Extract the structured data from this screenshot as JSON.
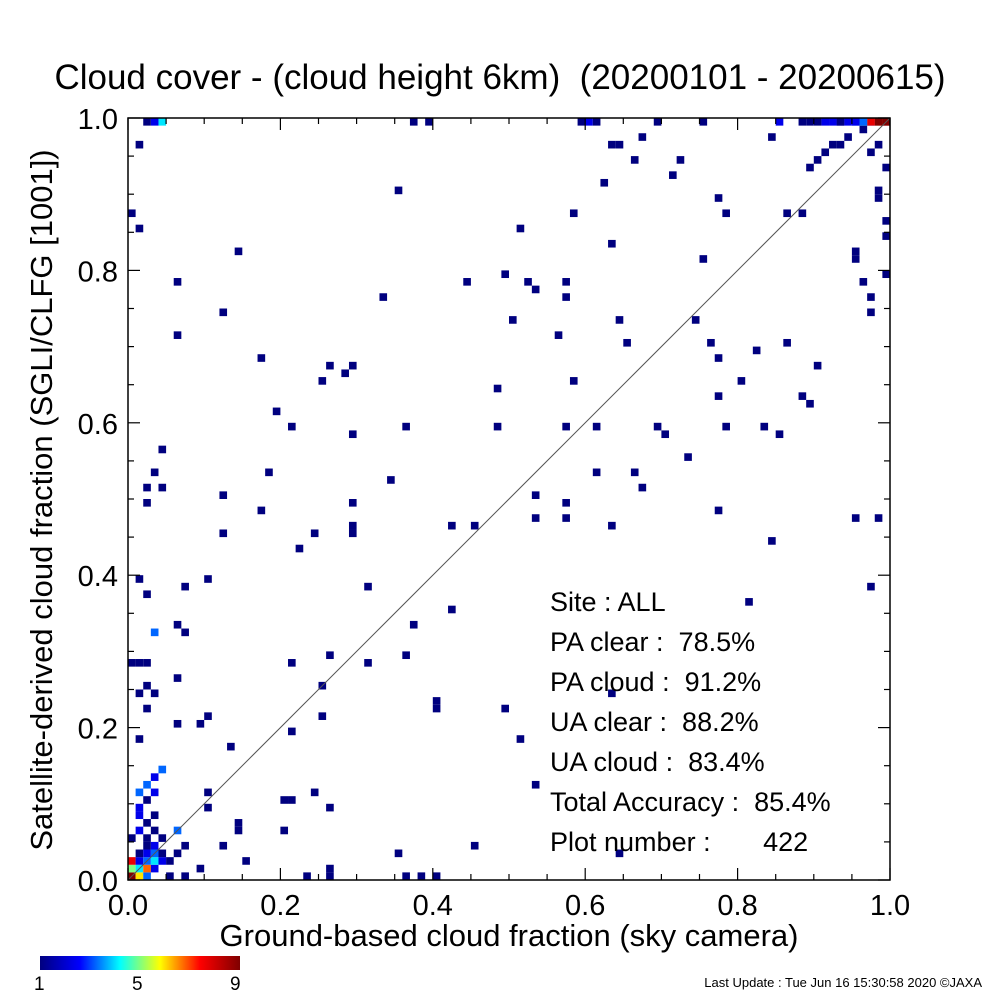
{
  "chart_data": {
    "type": "heatmap",
    "title": "Cloud cover - (cloud height 6km)  (20200101 - 20200615)",
    "xlabel": "Ground-based cloud fraction (sky camera)",
    "ylabel": "Satellite-derived cloud fraction (SGLI/CLFG [1001])",
    "xlim": [
      0.0,
      1.0
    ],
    "ylim": [
      0.0,
      1.0
    ],
    "x_ticks": [
      "0.0",
      "0.2",
      "0.4",
      "0.6",
      "0.8",
      "1.0"
    ],
    "y_ticks": [
      "0.0",
      "0.2",
      "0.4",
      "0.6",
      "0.8",
      "1.0"
    ],
    "bin_size": 0.01,
    "diagonal_reference_line": true,
    "colorbar": {
      "min": 1,
      "max": 9,
      "ticks": [
        "1",
        "5",
        "9"
      ]
    },
    "cells": [
      [
        0.0,
        0.0,
        9
      ],
      [
        0.01,
        0.0,
        6
      ],
      [
        0.02,
        0.0,
        3
      ],
      [
        0.0,
        0.01,
        5
      ],
      [
        0.01,
        0.01,
        4
      ],
      [
        0.02,
        0.01,
        7
      ],
      [
        0.03,
        0.01,
        2
      ],
      [
        0.0,
        0.02,
        8
      ],
      [
        0.01,
        0.02,
        2
      ],
      [
        0.02,
        0.02,
        3
      ],
      [
        0.03,
        0.02,
        4
      ],
      [
        0.04,
        0.02,
        2
      ],
      [
        0.01,
        0.03,
        1
      ],
      [
        0.02,
        0.03,
        2
      ],
      [
        0.03,
        0.03,
        3
      ],
      [
        0.04,
        0.03,
        1
      ],
      [
        0.02,
        0.04,
        1
      ],
      [
        0.03,
        0.04,
        2
      ],
      [
        0.0,
        0.05,
        1
      ],
      [
        0.02,
        0.05,
        1
      ],
      [
        0.04,
        0.05,
        1
      ],
      [
        0.01,
        0.06,
        2
      ],
      [
        0.03,
        0.06,
        1
      ],
      [
        0.06,
        0.06,
        3
      ],
      [
        0.02,
        0.07,
        1
      ],
      [
        0.01,
        0.08,
        2
      ],
      [
        0.03,
        0.08,
        1
      ],
      [
        0.01,
        0.09,
        2
      ],
      [
        0.02,
        0.1,
        1
      ],
      [
        0.01,
        0.11,
        3
      ],
      [
        0.03,
        0.11,
        2
      ],
      [
        0.02,
        0.12,
        3
      ],
      [
        0.03,
        0.13,
        2
      ],
      [
        0.04,
        0.14,
        3
      ],
      [
        0.01,
        0.18,
        1
      ],
      [
        0.02,
        0.22,
        1
      ],
      [
        0.01,
        0.24,
        1
      ],
      [
        0.03,
        0.24,
        1
      ],
      [
        0.02,
        0.25,
        1
      ],
      [
        0.0,
        0.28,
        1
      ],
      [
        0.01,
        0.28,
        1
      ],
      [
        0.02,
        0.28,
        1
      ],
      [
        0.03,
        0.32,
        3
      ],
      [
        0.01,
        0.39,
        1
      ],
      [
        0.02,
        0.37,
        1
      ],
      [
        0.05,
        0.02,
        1
      ],
      [
        0.07,
        0.0,
        1
      ],
      [
        0.05,
        0.0,
        1
      ],
      [
        0.06,
        0.03,
        1
      ],
      [
        0.07,
        0.04,
        1
      ],
      [
        0.06,
        0.2,
        1
      ],
      [
        0.06,
        0.26,
        1
      ],
      [
        0.06,
        0.33,
        1
      ],
      [
        0.07,
        0.32,
        1
      ],
      [
        0.07,
        0.38,
        1
      ],
      [
        0.1,
        0.39,
        1
      ],
      [
        0.09,
        0.2,
        1
      ],
      [
        0.1,
        0.21,
        1
      ],
      [
        0.1,
        0.09,
        1
      ],
      [
        0.1,
        0.11,
        1
      ],
      [
        0.09,
        0.01,
        1
      ],
      [
        0.12,
        0.04,
        1
      ],
      [
        0.13,
        0.17,
        1
      ],
      [
        0.12,
        0.45,
        1
      ],
      [
        0.12,
        0.5,
        1
      ],
      [
        0.14,
        0.82,
        1
      ],
      [
        0.12,
        0.74,
        1
      ],
      [
        0.06,
        0.71,
        1
      ],
      [
        0.06,
        0.78,
        1
      ],
      [
        0.02,
        0.49,
        1
      ],
      [
        0.02,
        0.51,
        1
      ],
      [
        0.03,
        0.53,
        1
      ],
      [
        0.04,
        0.56,
        1
      ],
      [
        0.04,
        0.51,
        1
      ],
      [
        0.0,
        0.87,
        1
      ],
      [
        0.01,
        0.85,
        1
      ],
      [
        0.01,
        0.96,
        1
      ],
      [
        0.03,
        1.0,
        2
      ],
      [
        0.04,
        1.0,
        4
      ],
      [
        0.02,
        1.0,
        1
      ],
      [
        0.15,
        0.02,
        1
      ],
      [
        0.14,
        0.06,
        1
      ],
      [
        0.14,
        0.07,
        1
      ],
      [
        0.18,
        0.53,
        1
      ],
      [
        0.17,
        0.48,
        1
      ],
      [
        0.17,
        0.68,
        1
      ],
      [
        0.19,
        0.61,
        1
      ],
      [
        0.21,
        0.59,
        1
      ],
      [
        0.2,
        0.1,
        1
      ],
      [
        0.21,
        0.1,
        1
      ],
      [
        0.2,
        0.06,
        1
      ],
      [
        0.21,
        0.19,
        1
      ],
      [
        0.21,
        0.28,
        1
      ],
      [
        0.22,
        0.43,
        1
      ],
      [
        0.24,
        0.45,
        1
      ],
      [
        0.26,
        0.29,
        1
      ],
      [
        0.25,
        0.25,
        1
      ],
      [
        0.25,
        0.21,
        1
      ],
      [
        0.25,
        0.65,
        1
      ],
      [
        0.26,
        0.67,
        1
      ],
      [
        0.28,
        0.66,
        1
      ],
      [
        0.29,
        0.67,
        1
      ],
      [
        0.29,
        0.58,
        1
      ],
      [
        0.29,
        0.49,
        1
      ],
      [
        0.29,
        0.46,
        1
      ],
      [
        0.29,
        0.45,
        1
      ],
      [
        0.24,
        0.11,
        1
      ],
      [
        0.26,
        0.09,
        1
      ],
      [
        0.26,
        0.01,
        1
      ],
      [
        0.26,
        0.0,
        1
      ],
      [
        0.23,
        0.0,
        1
      ],
      [
        0.31,
        0.38,
        1
      ],
      [
        0.31,
        0.28,
        1
      ],
      [
        0.33,
        0.76,
        1
      ],
      [
        0.34,
        0.52,
        1
      ],
      [
        0.35,
        0.9,
        1
      ],
      [
        0.36,
        0.59,
        1
      ],
      [
        0.36,
        0.29,
        1
      ],
      [
        0.37,
        0.33,
        1
      ],
      [
        0.35,
        0.03,
        1
      ],
      [
        0.36,
        0.0,
        1
      ],
      [
        0.38,
        0.0,
        1
      ],
      [
        0.4,
        0.0,
        1
      ],
      [
        0.37,
        1.0,
        1
      ],
      [
        0.39,
        0.99,
        1
      ],
      [
        0.4,
        0.23,
        1
      ],
      [
        0.4,
        0.22,
        1
      ],
      [
        0.42,
        0.35,
        1
      ],
      [
        0.42,
        0.46,
        1
      ],
      [
        0.45,
        0.46,
        1
      ],
      [
        0.45,
        0.04,
        1
      ],
      [
        0.44,
        0.78,
        1
      ],
      [
        0.48,
        0.64,
        1
      ],
      [
        0.48,
        0.59,
        1
      ],
      [
        0.49,
        0.79,
        1
      ],
      [
        0.49,
        0.22,
        1
      ],
      [
        0.5,
        0.73,
        1
      ],
      [
        0.51,
        0.85,
        1
      ],
      [
        0.51,
        0.18,
        1
      ],
      [
        0.52,
        0.78,
        1
      ],
      [
        0.53,
        0.77,
        1
      ],
      [
        0.53,
        0.5,
        1
      ],
      [
        0.53,
        0.47,
        1
      ],
      [
        0.56,
        0.71,
        1
      ],
      [
        0.57,
        0.78,
        1
      ],
      [
        0.57,
        0.76,
        1
      ],
      [
        0.57,
        0.59,
        1
      ],
      [
        0.57,
        0.49,
        1
      ],
      [
        0.57,
        0.47,
        1
      ],
      [
        0.58,
        0.87,
        1
      ],
      [
        0.58,
        0.65,
        1
      ],
      [
        0.53,
        0.12,
        1
      ],
      [
        0.59,
        0.99,
        1
      ],
      [
        0.6,
        1.0,
        2
      ],
      [
        0.61,
        0.99,
        1
      ],
      [
        0.62,
        0.91,
        1
      ],
      [
        0.63,
        0.96,
        1
      ],
      [
        0.64,
        0.96,
        1
      ],
      [
        0.63,
        0.83,
        1
      ],
      [
        0.64,
        0.73,
        1
      ],
      [
        0.65,
        0.7,
        1
      ],
      [
        0.61,
        0.59,
        1
      ],
      [
        0.61,
        0.53,
        1
      ],
      [
        0.63,
        0.46,
        1
      ],
      [
        0.66,
        0.53,
        1
      ],
      [
        0.67,
        0.51,
        1
      ],
      [
        0.69,
        0.59,
        1
      ],
      [
        0.7,
        0.58,
        1
      ],
      [
        0.73,
        0.55,
        1
      ],
      [
        0.74,
        0.73,
        1
      ],
      [
        0.75,
        0.81,
        1
      ],
      [
        0.76,
        0.7,
        1
      ],
      [
        0.77,
        0.68,
        1
      ],
      [
        0.77,
        0.63,
        1
      ],
      [
        0.78,
        0.59,
        1
      ],
      [
        0.77,
        0.48,
        1
      ],
      [
        0.66,
        0.94,
        1
      ],
      [
        0.67,
        0.97,
        1
      ],
      [
        0.69,
        0.99,
        1
      ],
      [
        0.71,
        0.92,
        1
      ],
      [
        0.72,
        0.94,
        1
      ],
      [
        0.75,
        1.0,
        1
      ],
      [
        0.77,
        0.89,
        1
      ],
      [
        0.78,
        0.87,
        1
      ],
      [
        0.8,
        0.65,
        1
      ],
      [
        0.81,
        0.36,
        1
      ],
      [
        0.82,
        0.69,
        1
      ],
      [
        0.83,
        0.59,
        1
      ],
      [
        0.84,
        0.44,
        1
      ],
      [
        0.85,
        0.58,
        1
      ],
      [
        0.86,
        0.7,
        1
      ],
      [
        0.88,
        0.63,
        1
      ],
      [
        0.89,
        0.62,
        1
      ],
      [
        0.9,
        0.67,
        1
      ],
      [
        0.84,
        0.97,
        1
      ],
      [
        0.85,
        1.0,
        2
      ],
      [
        0.86,
        0.87,
        1
      ],
      [
        0.88,
        0.87,
        1
      ],
      [
        0.89,
        0.93,
        1
      ],
      [
        0.9,
        0.94,
        1
      ],
      [
        0.91,
        0.95,
        1
      ],
      [
        0.92,
        0.96,
        1
      ],
      [
        0.63,
        0.24,
        1
      ],
      [
        0.64,
        0.03,
        1
      ],
      [
        0.95,
        0.82,
        1
      ],
      [
        0.95,
        0.81,
        1
      ],
      [
        0.96,
        0.78,
        1
      ],
      [
        0.97,
        0.76,
        1
      ],
      [
        0.97,
        0.74,
        1
      ],
      [
        0.99,
        0.79,
        1
      ],
      [
        0.95,
        0.47,
        1
      ],
      [
        0.98,
        0.47,
        1
      ],
      [
        0.97,
        0.38,
        1
      ],
      [
        0.99,
        0.84,
        1
      ],
      [
        0.99,
        0.86,
        1
      ],
      [
        0.98,
        0.89,
        1
      ],
      [
        0.98,
        0.9,
        1
      ],
      [
        0.99,
        0.93,
        1
      ],
      [
        0.97,
        0.95,
        1
      ],
      [
        0.98,
        0.96,
        1
      ],
      [
        0.96,
        0.98,
        1
      ],
      [
        0.97,
        0.99,
        2
      ],
      [
        0.98,
        0.99,
        7
      ],
      [
        0.99,
        0.99,
        8
      ],
      [
        0.99,
        1.0,
        9
      ],
      [
        0.98,
        1.0,
        9
      ],
      [
        0.97,
        1.0,
        8
      ],
      [
        0.96,
        1.0,
        5
      ],
      [
        0.95,
        1.0,
        3
      ],
      [
        0.94,
        1.0,
        2
      ],
      [
        0.93,
        1.0,
        2
      ],
      [
        0.92,
        1.0,
        2
      ],
      [
        0.91,
        1.0,
        2
      ],
      [
        0.9,
        1.0,
        1
      ],
      [
        0.89,
        1.0,
        1
      ],
      [
        0.88,
        1.0,
        1
      ],
      [
        0.96,
        0.99,
        3
      ],
      [
        0.95,
        0.99,
        2
      ],
      [
        0.93,
        0.99,
        1
      ],
      [
        0.94,
        0.97,
        1
      ],
      [
        0.93,
        0.96,
        1
      ]
    ]
  },
  "stats": {
    "site": "Site : ALL",
    "pa_clear": "PA clear :  78.5%",
    "pa_cloud": "PA cloud :  91.2%",
    "ua_clear": "UA clear :  88.2%",
    "ua_cloud": "UA cloud :  83.4%",
    "total_accuracy": "Total Accuracy :  85.4%",
    "plot_number": "Plot number :       422"
  },
  "footer": {
    "last_update": "Last Update : Tue Jun 16 15:30:58 2020  ©JAXA"
  }
}
